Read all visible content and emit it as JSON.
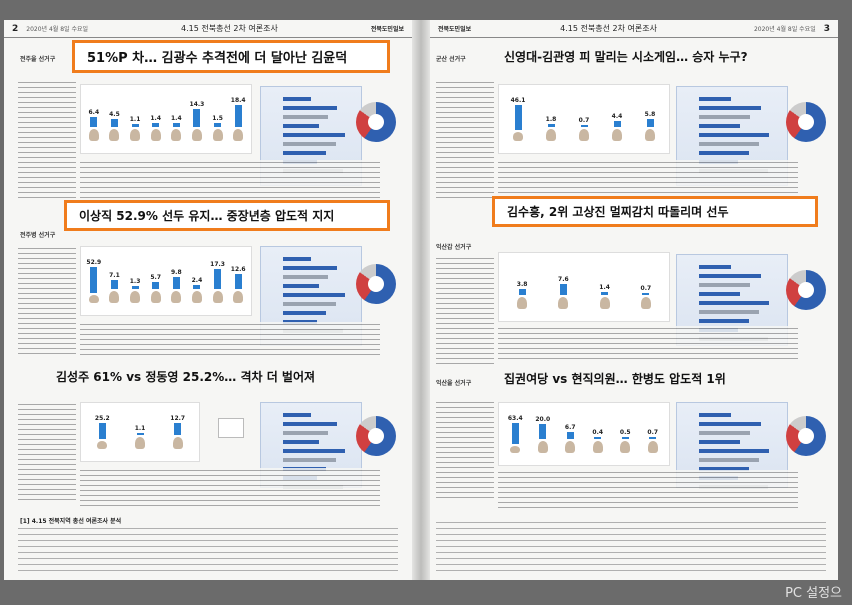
{
  "left_page": {
    "page_number": "2",
    "date": "2020년 4월 8일 수요일",
    "header_title": "4.15  전북총선 2차 여론조사",
    "paper_name": "전북도민일보",
    "sections": [
      {
        "district": "전주을 선거구",
        "headline": "51%P 차… 김광수 추격전에 더 달아난 김윤덕",
        "chart_values": [
          "6.4",
          "4.5",
          "1.1",
          "1.4",
          "1.4",
          "14.3",
          "1.5",
          "18.4"
        ],
        "bar_fracs": [
          0.25,
          0.2,
          0.08,
          0.09,
          0.09,
          0.45,
          0.09,
          0.55
        ]
      },
      {
        "district": "전주병 선거구",
        "headline": "이상직 52.9% 선두 유지… 중장년층 압도적 지지",
        "chart_values": [
          "52.9",
          "7.1",
          "1.3",
          "5.7",
          "9.8",
          "2.4",
          "17.3",
          "12.6"
        ],
        "bar_fracs": [
          0.9,
          0.22,
          0.07,
          0.18,
          0.3,
          0.1,
          0.5,
          0.38
        ]
      },
      {
        "district": "",
        "headline": "김성주 61% vs 정동영 25.2%… 격차 더 벌어져",
        "chart_values": [
          "25.2",
          "1.1",
          "12.7"
        ],
        "bar_fracs": [
          0.55,
          0.06,
          0.3
        ]
      }
    ],
    "footer_title": "[1] 4.15 전북지역 총선 여론조사 분석"
  },
  "right_page": {
    "page_number": "3",
    "date": "2020년 4월 8일 수요일",
    "header_title": "4.15  전북총선 2차 여론조사",
    "paper_name": "전북도민일보",
    "sections": [
      {
        "district": "군산 선거구",
        "headline": "신영대-김관영 피 말리는 시소게임… 승자 누구?",
        "chart_values": [
          "46.1",
          "1.8",
          "0.7",
          "4.4",
          "5.8"
        ],
        "bar_fracs": [
          0.88,
          0.08,
          0.05,
          0.15,
          0.2
        ]
      },
      {
        "district": "익산갑 선거구",
        "headline": "김수흥, 2위 고상진 멀찌감치 따돌리며 선두",
        "chart_values": [
          "3.8",
          "7.6",
          "1.4",
          "0.7"
        ],
        "bar_fracs": [
          0.15,
          0.28,
          0.07,
          0.05
        ]
      },
      {
        "district": "익산을 선거구",
        "headline": "집권여당 vs 현직의원… 한병도 압도적 1위",
        "chart_values": [
          "63.4",
          "20.0",
          "6.7",
          "0.4",
          "0.5",
          "0.7"
        ],
        "bar_fracs": [
          0.95,
          0.38,
          0.18,
          0.04,
          0.04,
          0.05
        ]
      }
    ]
  },
  "watermark": "PC 설정으"
}
